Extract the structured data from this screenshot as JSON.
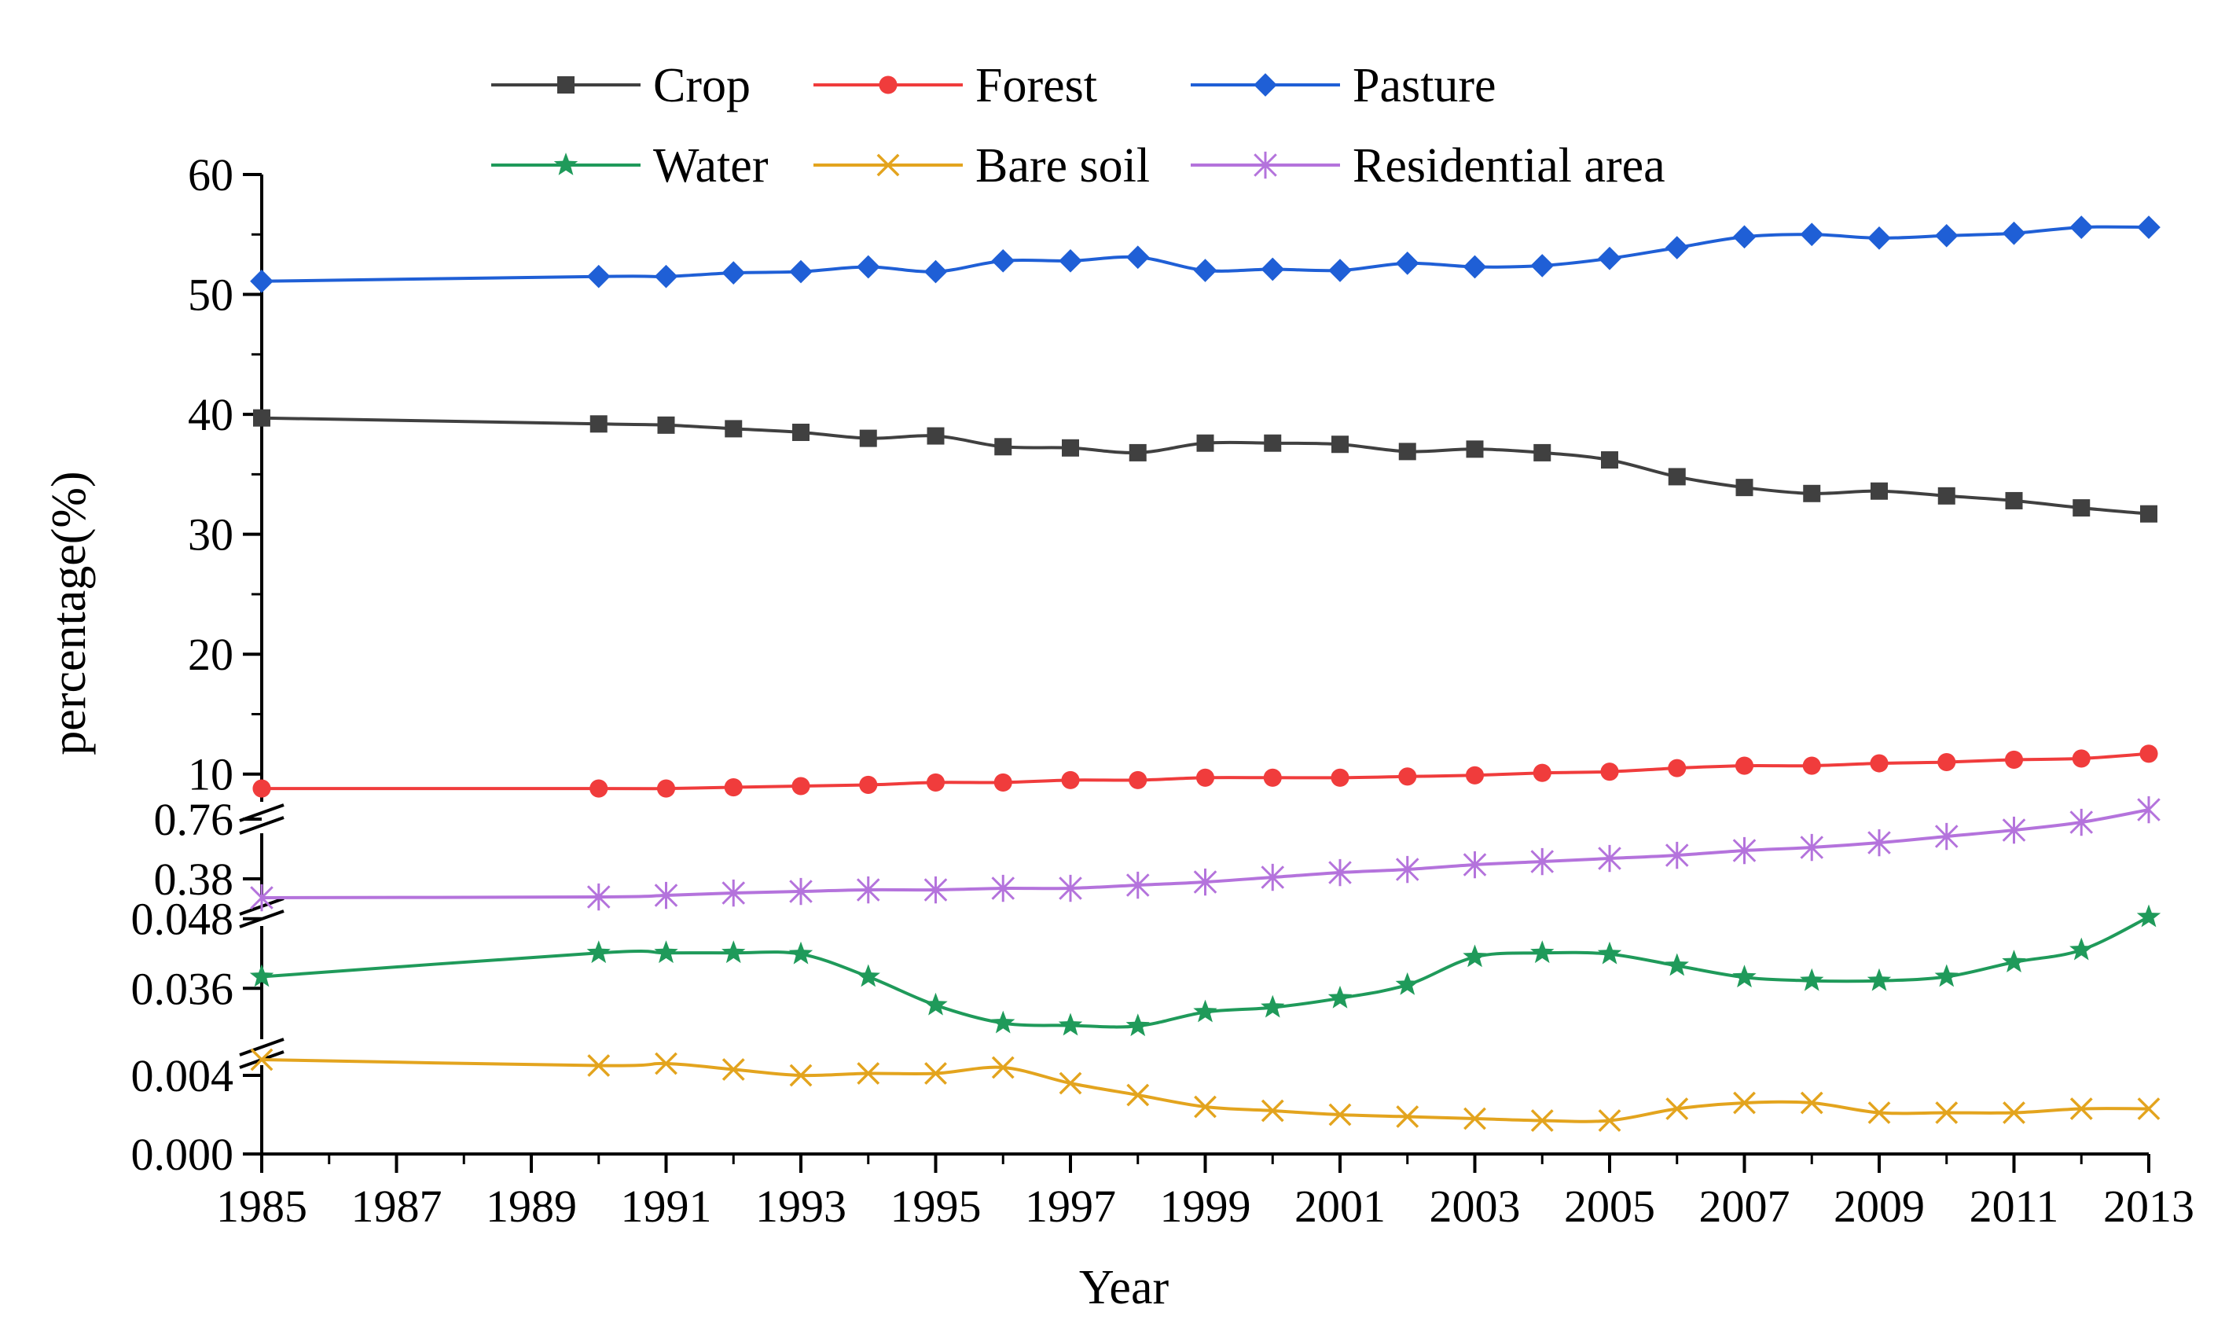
{
  "chart_data": {
    "type": "line",
    "xlabel": "Year",
    "ylabel": "percentage(%)",
    "x": [
      1985,
      1990,
      1991,
      1992,
      1993,
      1994,
      1995,
      1996,
      1997,
      1998,
      1999,
      2000,
      2001,
      2002,
      2003,
      2004,
      2005,
      2006,
      2007,
      2008,
      2009,
      2010,
      2011,
      2012,
      2013
    ],
    "x_tick_labels": [
      "1985",
      "1987",
      "1989",
      "1991",
      "1993",
      "1995",
      "1997",
      "1999",
      "2001",
      "2003",
      "2005",
      "2007",
      "2009",
      "2011",
      "2013"
    ],
    "xlim": [
      1985,
      2013
    ],
    "y_axis_note": "broken y-axis with four segments",
    "y_segments": [
      {
        "name": "upper",
        "ylim": [
          9,
          60
        ],
        "ticks": [
          "10",
          "20",
          "30",
          "40",
          "50",
          "60"
        ],
        "tick_values": [
          10,
          20,
          30,
          40,
          50,
          60
        ]
      },
      {
        "name": "residential",
        "ylim": [
          0.22,
          0.86
        ],
        "ticks": [
          "0.38",
          "0.76"
        ],
        "tick_values": [
          0.38,
          0.76
        ]
      },
      {
        "name": "water",
        "ylim": [
          0.0275,
          0.0485
        ],
        "ticks": [
          "0.036",
          "0.048"
        ],
        "tick_values": [
          0.036,
          0.048
        ]
      },
      {
        "name": "bare",
        "ylim": [
          0.0,
          0.0048
        ],
        "ticks": [
          "0.000",
          "0.004"
        ],
        "tick_values": [
          0.0,
          0.004
        ]
      }
    ],
    "series": [
      {
        "name": "Crop",
        "color": "#404040",
        "marker": "square",
        "segment": "upper",
        "values": [
          39.7,
          39.2,
          39.1,
          38.8,
          38.5,
          38.0,
          38.2,
          37.3,
          37.2,
          36.8,
          37.6,
          37.6,
          37.5,
          36.9,
          37.1,
          36.8,
          36.2,
          34.8,
          33.9,
          33.4,
          33.6,
          33.2,
          32.8,
          32.2,
          31.7
        ]
      },
      {
        "name": "Forest",
        "color": "#f03c3c",
        "marker": "circle",
        "segment": "upper",
        "values": [
          8.8,
          8.8,
          8.8,
          8.9,
          9.0,
          9.1,
          9.3,
          9.3,
          9.5,
          9.5,
          9.7,
          9.7,
          9.7,
          9.8,
          9.9,
          10.1,
          10.2,
          10.5,
          10.7,
          10.7,
          10.9,
          11.0,
          11.2,
          11.3,
          11.7
        ]
      },
      {
        "name": "Pasture",
        "color": "#1f5fd6",
        "marker": "diamond",
        "segment": "upper",
        "values": [
          51.1,
          51.5,
          51.5,
          51.8,
          51.9,
          52.3,
          51.9,
          52.8,
          52.8,
          53.1,
          52.0,
          52.1,
          52.0,
          52.6,
          52.3,
          52.4,
          53.0,
          53.9,
          54.8,
          55.0,
          54.7,
          54.9,
          55.1,
          55.6,
          55.6
        ]
      },
      {
        "name": "Water",
        "color": "#1f9a5a",
        "marker": "star",
        "segment": "water",
        "values": [
          0.038,
          0.0421,
          0.0421,
          0.0421,
          0.0419,
          0.038,
          0.0331,
          0.03,
          0.0296,
          0.0295,
          0.0319,
          0.0327,
          0.0343,
          0.0366,
          0.0414,
          0.0421,
          0.0419,
          0.0399,
          0.0379,
          0.0373,
          0.0373,
          0.038,
          0.0405,
          0.0426,
          0.0483
        ]
      },
      {
        "name": "Bare soil",
        "color": "#e3a41e",
        "marker": "x",
        "segment": "bare",
        "values": [
          0.0048,
          0.0045,
          0.0046,
          0.0043,
          0.004,
          0.0041,
          0.0041,
          0.0044,
          0.0036,
          0.003,
          0.0024,
          0.0022,
          0.002,
          0.0019,
          0.0018,
          0.0017,
          0.0017,
          0.0023,
          0.0026,
          0.0026,
          0.0021,
          0.0021,
          0.0021,
          0.0023,
          0.0023
        ]
      },
      {
        "name": "Residential area",
        "color": "#b473dc",
        "marker": "asterisk",
        "segment": "residential",
        "values": [
          0.26,
          0.265,
          0.275,
          0.29,
          0.3,
          0.31,
          0.31,
          0.32,
          0.32,
          0.34,
          0.36,
          0.39,
          0.42,
          0.44,
          0.47,
          0.49,
          0.51,
          0.53,
          0.56,
          0.58,
          0.61,
          0.65,
          0.69,
          0.74,
          0.82
        ]
      }
    ],
    "legend": {
      "position": "top",
      "rows": [
        [
          "Crop",
          "Forest",
          "Pasture"
        ],
        [
          "Water",
          "Bare soil",
          "Residential area"
        ]
      ]
    },
    "grid": false
  }
}
